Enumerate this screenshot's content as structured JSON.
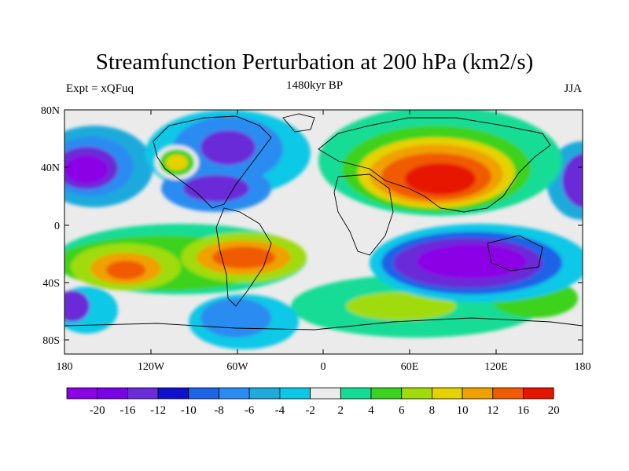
{
  "title": "Streamfunction Perturbation at 200 hPa (km2/s)",
  "subtitle": "1480kyr BP",
  "left_label": "Expt = xQFuq",
  "right_label": "JJA",
  "lat_ticks": [
    "80N",
    "40N",
    "0",
    "40S",
    "80S"
  ],
  "lon_ticks": [
    "180",
    "120W",
    "60W",
    "0",
    "60E",
    "120E",
    "180"
  ],
  "legend": {
    "labels": [
      "-20",
      "-16",
      "-12",
      "-10",
      "-8",
      "-6",
      "-4",
      "-2",
      "2",
      "4",
      "6",
      "8",
      "10",
      "12",
      "16",
      "20"
    ],
    "colors": [
      "#8c00e6",
      "#7a00e6",
      "#6a2cd8",
      "#1010d0",
      "#1e64e6",
      "#2a8cf0",
      "#1eaadc",
      "#0ac8e6",
      "#ebebeb",
      "#14dc96",
      "#3cd21e",
      "#a0dc0a",
      "#e6d200",
      "#f0a000",
      "#f05a00",
      "#e61400"
    ]
  }
}
